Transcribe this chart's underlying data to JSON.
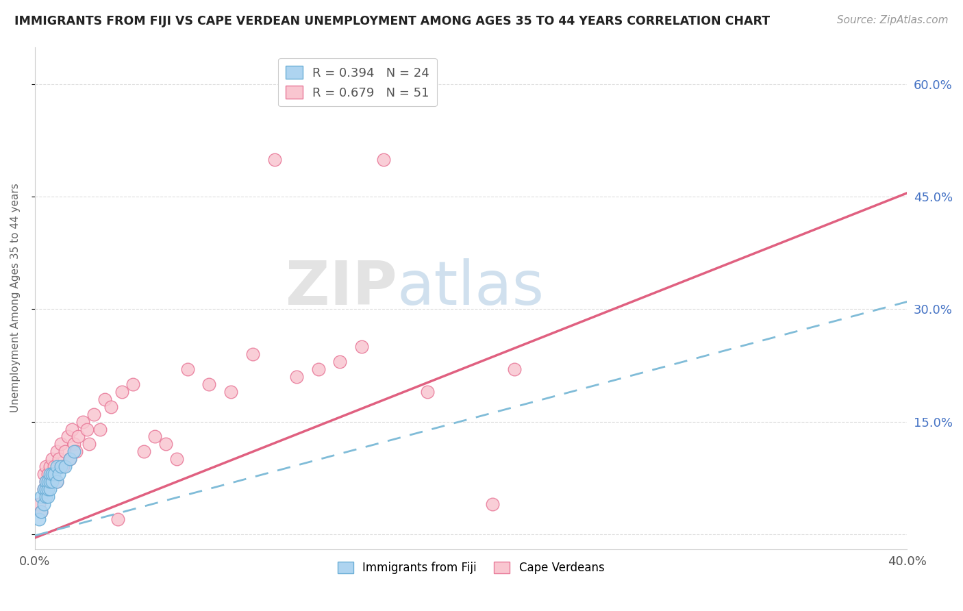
{
  "title": "IMMIGRANTS FROM FIJI VS CAPE VERDEAN UNEMPLOYMENT AMONG AGES 35 TO 44 YEARS CORRELATION CHART",
  "source": "Source: ZipAtlas.com",
  "ylabel": "Unemployment Among Ages 35 to 44 years",
  "xlim": [
    0.0,
    0.4
  ],
  "ylim": [
    -0.02,
    0.65
  ],
  "xtick_values": [
    0.0,
    0.1,
    0.2,
    0.3,
    0.4
  ],
  "xtick_labels": [
    "0.0%",
    "",
    "",
    "",
    "40.0%"
  ],
  "ytick_values": [
    0.0,
    0.15,
    0.3,
    0.45,
    0.6
  ],
  "ytick_labels_right": [
    "",
    "15.0%",
    "30.0%",
    "45.0%",
    "60.0%"
  ],
  "fiji_color": "#aed4f0",
  "fiji_edge_color": "#6aaed6",
  "cape_color": "#f9c6d0",
  "cape_edge_color": "#e87898",
  "cape_line_color": "#e06080",
  "fiji_line_color": "#80bcd8",
  "fiji_R": 0.394,
  "fiji_N": 24,
  "cape_R": 0.679,
  "cape_N": 51,
  "watermark_zip": "ZIP",
  "watermark_atlas": "atlas",
  "title_color": "#222222",
  "source_color": "#999999",
  "grid_color": "#dddddd",
  "right_axis_color": "#4472c4",
  "legend_N_color": "#4472c4",
  "background_color": "#ffffff",
  "fiji_scatter_x": [
    0.002,
    0.003,
    0.003,
    0.004,
    0.004,
    0.005,
    0.005,
    0.005,
    0.006,
    0.006,
    0.006,
    0.007,
    0.007,
    0.007,
    0.008,
    0.008,
    0.009,
    0.01,
    0.01,
    0.011,
    0.012,
    0.014,
    0.016,
    0.018
  ],
  "fiji_scatter_y": [
    0.02,
    0.03,
    0.05,
    0.04,
    0.06,
    0.05,
    0.06,
    0.07,
    0.05,
    0.06,
    0.07,
    0.06,
    0.07,
    0.08,
    0.07,
    0.08,
    0.08,
    0.07,
    0.09,
    0.08,
    0.09,
    0.09,
    0.1,
    0.11
  ],
  "cape_scatter_x": [
    0.002,
    0.003,
    0.004,
    0.004,
    0.005,
    0.005,
    0.006,
    0.007,
    0.007,
    0.008,
    0.008,
    0.009,
    0.01,
    0.01,
    0.011,
    0.012,
    0.013,
    0.014,
    0.015,
    0.016,
    0.017,
    0.018,
    0.019,
    0.02,
    0.022,
    0.024,
    0.025,
    0.027,
    0.03,
    0.032,
    0.035,
    0.038,
    0.04,
    0.045,
    0.05,
    0.055,
    0.06,
    0.065,
    0.07,
    0.08,
    0.09,
    0.1,
    0.11,
    0.12,
    0.13,
    0.14,
    0.15,
    0.16,
    0.18,
    0.21,
    0.22
  ],
  "cape_scatter_y": [
    0.04,
    0.03,
    0.06,
    0.08,
    0.07,
    0.09,
    0.08,
    0.07,
    0.09,
    0.1,
    0.08,
    0.09,
    0.07,
    0.11,
    0.1,
    0.12,
    0.09,
    0.11,
    0.13,
    0.1,
    0.14,
    0.12,
    0.11,
    0.13,
    0.15,
    0.14,
    0.12,
    0.16,
    0.14,
    0.18,
    0.17,
    0.02,
    0.19,
    0.2,
    0.11,
    0.13,
    0.12,
    0.1,
    0.22,
    0.2,
    0.19,
    0.24,
    0.5,
    0.21,
    0.22,
    0.23,
    0.25,
    0.5,
    0.19,
    0.04,
    0.22
  ]
}
